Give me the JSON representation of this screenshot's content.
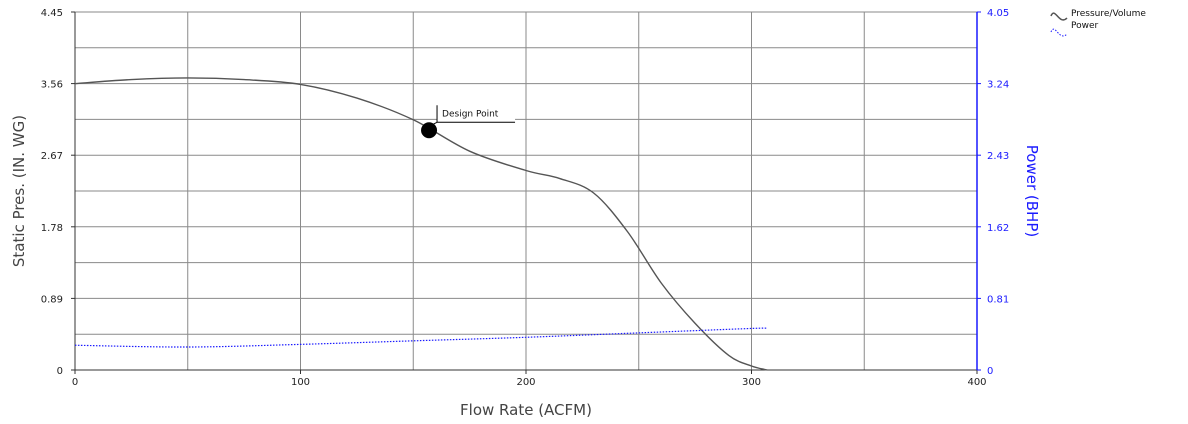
{
  "chart_data": {
    "type": "line",
    "xlabel": "Flow Rate (ACFM)",
    "ylabel": "Static Pres. (IN. WG)",
    "y2label": "Power (BHP)",
    "xlim": [
      0,
      400
    ],
    "ylim": [
      0,
      4.45
    ],
    "y2lim": [
      0,
      4.05
    ],
    "x_ticks": [
      "0",
      "100",
      "200",
      "300",
      "400"
    ],
    "y_ticks": [
      "0",
      "0.89",
      "1.78",
      "2.67",
      "3.56",
      "4.45"
    ],
    "y2_ticks": [
      "0",
      "0.81",
      "1.62",
      "2.43",
      "3.24",
      "4.05"
    ],
    "grid": true,
    "legend_position": "top-right",
    "series": [
      {
        "name": "Pressure/Volume",
        "axis": "left",
        "color": "#555555",
        "x": [
          0,
          25,
          50,
          75,
          100,
          125,
          150,
          175,
          200,
          215,
          230,
          245,
          260,
          275,
          290,
          300,
          307
        ],
        "y": [
          3.56,
          3.61,
          3.63,
          3.61,
          3.55,
          3.38,
          3.11,
          2.72,
          2.48,
          2.38,
          2.2,
          1.72,
          1.08,
          0.58,
          0.18,
          0.05,
          0
        ]
      },
      {
        "name": "Power",
        "axis": "right",
        "color": "#1a1aff",
        "x": [
          0,
          50,
          100,
          150,
          200,
          250,
          300,
          307
        ],
        "y": [
          0.28,
          0.26,
          0.29,
          0.33,
          0.37,
          0.42,
          0.47,
          0.47
        ]
      }
    ],
    "annotations": [
      {
        "label": "Design Point",
        "x": 157,
        "y": 2.98
      }
    ]
  }
}
